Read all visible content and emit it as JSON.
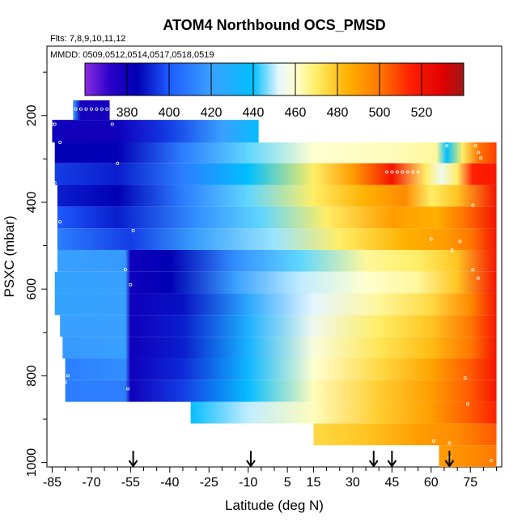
{
  "chart_data": {
    "type": "heatmap",
    "title": "ATOM4 Northbound OCS_PMSD",
    "flights_note": "Flts: 7,8,9,10,11,12",
    "dates_note": "MMDD: 0509,0512,0514,0517,0518,0519",
    "xlabel": "Latitude (deg N)",
    "ylabel": "PSXC (mbar)",
    "xlim": [
      -87,
      87
    ],
    "ylim": [
      1010,
      40
    ],
    "x_ticks": [
      -85,
      -70,
      -55,
      -40,
      -25,
      -10,
      5,
      15,
      30,
      45,
      60,
      75
    ],
    "x_tick_labels": [
      "-85",
      "-70",
      "-55",
      "-40",
      "-25",
      "-10",
      "5",
      "15",
      "30",
      "45",
      "60",
      "75"
    ],
    "y_ticks": [
      200,
      400,
      600,
      800,
      1000
    ],
    "y_tick_labels": [
      "200",
      "400",
      "600",
      "800",
      "1000"
    ],
    "colorbar": {
      "range": [
        360,
        540
      ],
      "ticks": [
        380,
        400,
        420,
        440,
        460,
        480,
        500,
        520
      ],
      "tick_labels": [
        "380",
        "400",
        "420",
        "440",
        "460",
        "480",
        "500",
        "520"
      ],
      "stops": [
        {
          "value": 360,
          "color": "#8a2be2"
        },
        {
          "value": 372,
          "color": "#2a00c8"
        },
        {
          "value": 385,
          "color": "#0000b4"
        },
        {
          "value": 400,
          "color": "#1e5bff"
        },
        {
          "value": 420,
          "color": "#39a0ff"
        },
        {
          "value": 440,
          "color": "#00bfff"
        },
        {
          "value": 452,
          "color": "#e6f6ff"
        },
        {
          "value": 460,
          "color": "#ffffd0"
        },
        {
          "value": 470,
          "color": "#ffee66"
        },
        {
          "value": 485,
          "color": "#ffb000"
        },
        {
          "value": 500,
          "color": "#ff7800"
        },
        {
          "value": 515,
          "color": "#ff1e00"
        },
        {
          "value": 530,
          "color": "#e00000"
        },
        {
          "value": 540,
          "color": "#a01818"
        }
      ]
    },
    "bands": [
      {
        "p_top": 165,
        "p_bot": 210,
        "lat_start": -77,
        "lat_end": -63,
        "profile": [
          [
            -77,
            420
          ],
          [
            -74,
            380
          ],
          [
            -70,
            378
          ],
          [
            -66,
            380
          ],
          [
            -63,
            378
          ]
        ]
      },
      {
        "p_top": 210,
        "p_bot": 262,
        "lat_start": -85,
        "lat_end": -6,
        "profile": [
          [
            -85,
            380
          ],
          [
            -60,
            380
          ],
          [
            -40,
            395
          ],
          [
            -20,
            420
          ],
          [
            -8,
            435
          ],
          [
            -6,
            440
          ]
        ]
      },
      {
        "p_top": 262,
        "p_bot": 310,
        "lat_start": -84,
        "lat_end": 85,
        "profile": [
          [
            -84,
            385
          ],
          [
            -60,
            384
          ],
          [
            -35,
            410
          ],
          [
            -10,
            445
          ],
          [
            15,
            460
          ],
          [
            45,
            462
          ],
          [
            62,
            465
          ],
          [
            66,
            440
          ],
          [
            72,
            470
          ],
          [
            78,
            500
          ],
          [
            85,
            510
          ]
        ]
      },
      {
        "p_top": 310,
        "p_bot": 360,
        "lat_start": -84,
        "lat_end": 85,
        "profile": [
          [
            -84,
            395
          ],
          [
            -60,
            390
          ],
          [
            -35,
            410
          ],
          [
            -10,
            440
          ],
          [
            15,
            470
          ],
          [
            30,
            490
          ],
          [
            45,
            520
          ],
          [
            58,
            470
          ],
          [
            64,
            455
          ],
          [
            70,
            470
          ],
          [
            76,
            515
          ],
          [
            85,
            518
          ]
        ]
      },
      {
        "p_top": 360,
        "p_bot": 410,
        "lat_start": -83,
        "lat_end": 85,
        "profile": [
          [
            -83,
            390
          ],
          [
            -60,
            385
          ],
          [
            -35,
            410
          ],
          [
            -10,
            445
          ],
          [
            15,
            470
          ],
          [
            35,
            485
          ],
          [
            50,
            495
          ],
          [
            60,
            470
          ],
          [
            70,
            480
          ],
          [
            85,
            520
          ]
        ]
      },
      {
        "p_top": 410,
        "p_bot": 460,
        "lat_start": -83,
        "lat_end": 85,
        "profile": [
          [
            -83,
            400
          ],
          [
            -60,
            390
          ],
          [
            -30,
            415
          ],
          [
            -5,
            445
          ],
          [
            20,
            470
          ],
          [
            45,
            490
          ],
          [
            62,
            485
          ],
          [
            72,
            500
          ],
          [
            85,
            520
          ]
        ]
      },
      {
        "p_top": 460,
        "p_bot": 510,
        "lat_start": -83,
        "lat_end": 85,
        "profile": [
          [
            -83,
            410
          ],
          [
            -55,
            395
          ],
          [
            -30,
            420
          ],
          [
            0,
            448
          ],
          [
            25,
            470
          ],
          [
            50,
            485
          ],
          [
            65,
            490
          ],
          [
            75,
            500
          ],
          [
            85,
            520
          ]
        ]
      },
      {
        "p_top": 510,
        "p_bot": 560,
        "lat_start": -83,
        "lat_end": 85,
        "profile": [
          [
            -83,
            420
          ],
          [
            -57,
            418
          ],
          [
            -55,
            380
          ],
          [
            -40,
            385
          ],
          [
            -15,
            415
          ],
          [
            10,
            445
          ],
          [
            35,
            465
          ],
          [
            55,
            470
          ],
          [
            70,
            480
          ],
          [
            85,
            520
          ]
        ]
      },
      {
        "p_top": 560,
        "p_bot": 610,
        "lat_start": -84,
        "lat_end": 85,
        "profile": [
          [
            -84,
            422
          ],
          [
            -57,
            420
          ],
          [
            -55,
            380
          ],
          [
            -40,
            385
          ],
          [
            -15,
            420
          ],
          [
            10,
            450
          ],
          [
            35,
            460
          ],
          [
            55,
            465
          ],
          [
            70,
            480
          ],
          [
            85,
            520
          ]
        ]
      },
      {
        "p_top": 610,
        "p_bot": 660,
        "lat_start": -84,
        "lat_end": 85,
        "profile": [
          [
            -84,
            422
          ],
          [
            -57,
            420
          ],
          [
            -55,
            380
          ],
          [
            -35,
            388
          ],
          [
            -10,
            425
          ],
          [
            15,
            452
          ],
          [
            40,
            465
          ],
          [
            60,
            475
          ],
          [
            75,
            495
          ],
          [
            85,
            520
          ]
        ]
      },
      {
        "p_top": 660,
        "p_bot": 710,
        "lat_start": -82,
        "lat_end": 85,
        "profile": [
          [
            -82,
            420
          ],
          [
            -57,
            420
          ],
          [
            -55,
            380
          ],
          [
            -35,
            390
          ],
          [
            -10,
            430
          ],
          [
            15,
            455
          ],
          [
            40,
            470
          ],
          [
            60,
            480
          ],
          [
            75,
            500
          ],
          [
            85,
            520
          ]
        ]
      },
      {
        "p_top": 710,
        "p_bot": 760,
        "lat_start": -81,
        "lat_end": 85,
        "profile": [
          [
            -81,
            418
          ],
          [
            -57,
            420
          ],
          [
            -55,
            380
          ],
          [
            -35,
            390
          ],
          [
            -10,
            432
          ],
          [
            15,
            458
          ],
          [
            40,
            472
          ],
          [
            60,
            482
          ],
          [
            75,
            500
          ],
          [
            85,
            520
          ]
        ]
      },
      {
        "p_top": 760,
        "p_bot": 810,
        "lat_start": -80,
        "lat_end": 85,
        "profile": [
          [
            -80,
            410
          ],
          [
            -57,
            415
          ],
          [
            -55,
            380
          ],
          [
            -35,
            392
          ],
          [
            -10,
            435
          ],
          [
            15,
            460
          ],
          [
            40,
            475
          ],
          [
            60,
            488
          ],
          [
            75,
            505
          ],
          [
            85,
            520
          ]
        ]
      },
      {
        "p_top": 810,
        "p_bot": 860,
        "lat_start": -80,
        "lat_end": 85,
        "profile": [
          [
            -80,
            410
          ],
          [
            -57,
            410
          ],
          [
            -55,
            380
          ],
          [
            -35,
            395
          ],
          [
            -10,
            438
          ],
          [
            15,
            462
          ],
          [
            40,
            478
          ],
          [
            60,
            490
          ],
          [
            75,
            505
          ],
          [
            85,
            520
          ]
        ]
      },
      {
        "p_top": 860,
        "p_bot": 910,
        "lat_start": -32,
        "lat_end": 85,
        "profile": [
          [
            -32,
            438
          ],
          [
            -10,
            450
          ],
          [
            15,
            462
          ],
          [
            40,
            478
          ],
          [
            60,
            490
          ],
          [
            75,
            505
          ],
          [
            85,
            515
          ]
        ]
      },
      {
        "p_top": 910,
        "p_bot": 960,
        "lat_start": 15,
        "lat_end": 85,
        "profile": [
          [
            15,
            475
          ],
          [
            35,
            480
          ],
          [
            55,
            490
          ],
          [
            70,
            495
          ],
          [
            85,
            505
          ]
        ]
      },
      {
        "p_top": 960,
        "p_bot": 1010,
        "lat_start": 63,
        "lat_end": 85,
        "profile": [
          [
            63,
            490
          ],
          [
            75,
            495
          ],
          [
            85,
            500
          ]
        ]
      }
    ],
    "markers": [
      {
        "lat": -76,
        "p": 185
      },
      {
        "lat": -74,
        "p": 185
      },
      {
        "lat": -72,
        "p": 185
      },
      {
        "lat": -70,
        "p": 185
      },
      {
        "lat": -68,
        "p": 185
      },
      {
        "lat": -66,
        "p": 185
      },
      {
        "lat": -64,
        "p": 185
      },
      {
        "lat": -85,
        "p": 220
      },
      {
        "lat": -84,
        "p": 220
      },
      {
        "lat": -62,
        "p": 220
      },
      {
        "lat": -82,
        "p": 262
      },
      {
        "lat": -60,
        "p": 310
      },
      {
        "lat": 66,
        "p": 270
      },
      {
        "lat": 77,
        "p": 270
      },
      {
        "lat": 78,
        "p": 285
      },
      {
        "lat": 79,
        "p": 298
      },
      {
        "lat": 43,
        "p": 330
      },
      {
        "lat": 45,
        "p": 330
      },
      {
        "lat": 47,
        "p": 330
      },
      {
        "lat": 49,
        "p": 330
      },
      {
        "lat": 51,
        "p": 330
      },
      {
        "lat": 53,
        "p": 330
      },
      {
        "lat": 55,
        "p": 330
      },
      {
        "lat": -84,
        "p": 355
      },
      {
        "lat": 76,
        "p": 407
      },
      {
        "lat": -82,
        "p": 445
      },
      {
        "lat": -54,
        "p": 465
      },
      {
        "lat": 60,
        "p": 485
      },
      {
        "lat": 71,
        "p": 490
      },
      {
        "lat": 68,
        "p": 510
      },
      {
        "lat": -57,
        "p": 555
      },
      {
        "lat": -55,
        "p": 590
      },
      {
        "lat": 76,
        "p": 555
      },
      {
        "lat": 78,
        "p": 575
      },
      {
        "lat": -85,
        "p": 625
      },
      {
        "lat": -79,
        "p": 800
      },
      {
        "lat": -80,
        "p": 815
      },
      {
        "lat": -56,
        "p": 830
      },
      {
        "lat": 73,
        "p": 805
      },
      {
        "lat": 74,
        "p": 865
      },
      {
        "lat": 61,
        "p": 950
      },
      {
        "lat": 67,
        "p": 955
      },
      {
        "lat": 62,
        "p": 990
      },
      {
        "lat": 67,
        "p": 988
      },
      {
        "lat": 83,
        "p": 995
      }
    ],
    "arrows": [
      -54,
      -9,
      38,
      45,
      67
    ],
    "arrow_base_p": 1010
  }
}
